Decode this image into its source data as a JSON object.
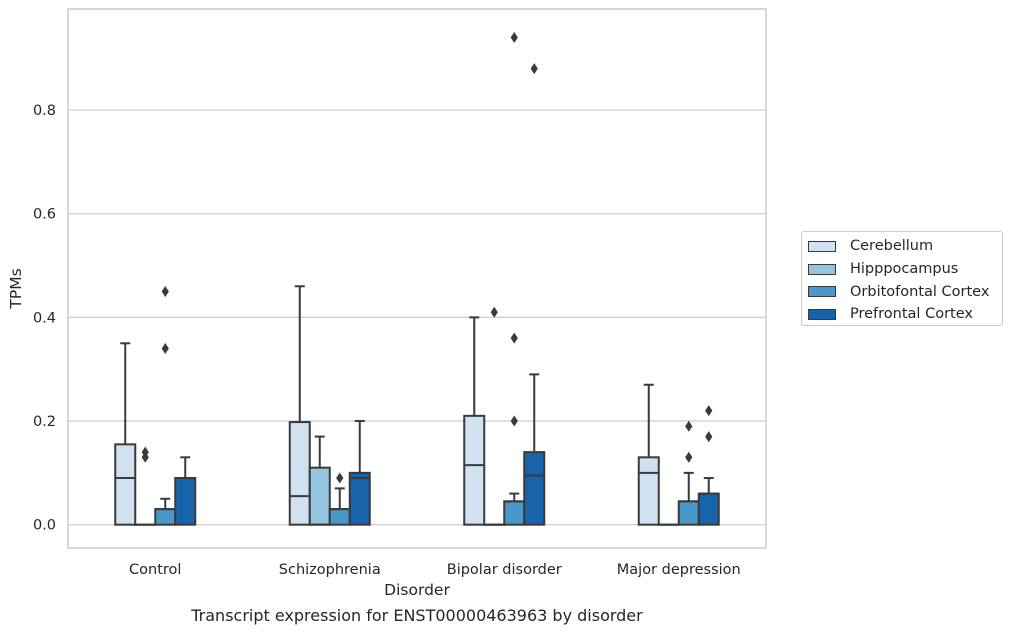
{
  "caption": "Transcript expression for ENST00000463963 by disorder",
  "chart_data": {
    "type": "box",
    "xlabel": "Disorder",
    "ylabel": "TPMs",
    "ylim": [
      -0.045,
      0.995
    ],
    "yticks": [
      "0.0",
      "0.2",
      "0.4",
      "0.6",
      "0.8"
    ],
    "ytick_values": [
      0,
      0.2,
      0.4,
      0.6,
      0.8
    ],
    "grid": true,
    "legend_placement": "outside-right",
    "categories": [
      "Control",
      "Schizophrenia",
      "Bipolar disorder",
      "Major depression"
    ],
    "series": [
      {
        "name": "Cerebellum",
        "color": "#d0e1f2",
        "boxes": [
          {
            "q1": 0,
            "median": 0.09,
            "q3": 0.155,
            "whisker_low": 0,
            "whisker_high": 0.35,
            "outliers": []
          },
          {
            "q1": 0,
            "median": 0.055,
            "q3": 0.198,
            "whisker_low": 0,
            "whisker_high": 0.46,
            "outliers": []
          },
          {
            "q1": 0,
            "median": 0.115,
            "q3": 0.21,
            "whisker_low": 0,
            "whisker_high": 0.4,
            "outliers": []
          },
          {
            "q1": 0,
            "median": 0.1,
            "q3": 0.13,
            "whisker_low": 0,
            "whisker_high": 0.27,
            "outliers": []
          }
        ]
      },
      {
        "name": "Hipppocampus",
        "color": "#94c4df",
        "boxes": [
          {
            "q1": 0,
            "median": 0,
            "q3": 0,
            "whisker_low": 0,
            "whisker_high": 0,
            "outliers": [
              0.13,
              0.14
            ]
          },
          {
            "q1": 0,
            "median": 0,
            "q3": 0.11,
            "whisker_low": 0,
            "whisker_high": 0.17,
            "outliers": []
          },
          {
            "q1": 0,
            "median": 0,
            "q3": 0,
            "whisker_low": 0,
            "whisker_high": 0,
            "outliers": [
              0.41
            ]
          },
          {
            "q1": 0,
            "median": 0,
            "q3": 0,
            "whisker_low": 0,
            "whisker_high": 0,
            "outliers": []
          }
        ]
      },
      {
        "name": "Orbitofontal Cortex",
        "color": "#4a98c9",
        "boxes": [
          {
            "q1": 0,
            "median": 0.03,
            "q3": 0.03,
            "whisker_low": 0,
            "whisker_high": 0.05,
            "outliers": [
              0.34,
              0.45
            ]
          },
          {
            "q1": 0,
            "median": 0.03,
            "q3": 0.03,
            "whisker_low": 0,
            "whisker_high": 0.07,
            "outliers": [
              0.09
            ]
          },
          {
            "q1": 0,
            "median": 0.045,
            "q3": 0.045,
            "whisker_low": 0,
            "whisker_high": 0.06,
            "outliers": [
              0.2,
              0.36,
              0.94
            ]
          },
          {
            "q1": 0,
            "median": 0.045,
            "q3": 0.045,
            "whisker_low": 0,
            "whisker_high": 0.1,
            "outliers": [
              0.13,
              0.19
            ]
          }
        ]
      },
      {
        "name": "Prefrontal Cortex",
        "color": "#1764ab",
        "boxes": [
          {
            "q1": 0,
            "median": 0.09,
            "q3": 0.09,
            "whisker_low": 0,
            "whisker_high": 0.13,
            "outliers": []
          },
          {
            "q1": 0,
            "median": 0.09,
            "q3": 0.1,
            "whisker_low": 0,
            "whisker_high": 0.2,
            "outliers": []
          },
          {
            "q1": 0,
            "median": 0.095,
            "q3": 0.14,
            "whisker_low": 0,
            "whisker_high": 0.29,
            "outliers": [
              0.88
            ]
          },
          {
            "q1": 0,
            "median": 0.06,
            "q3": 0.06,
            "whisker_low": 0,
            "whisker_high": 0.09,
            "outliers": [
              0.17,
              0.22
            ]
          }
        ]
      }
    ]
  }
}
